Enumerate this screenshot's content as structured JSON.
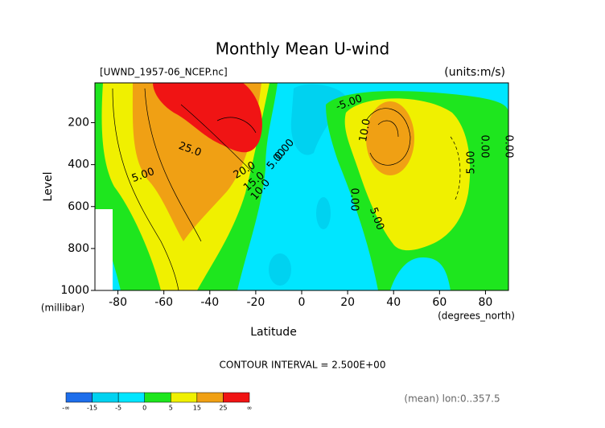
{
  "chart_data": {
    "type": "contour",
    "title": "Monthly Mean U-wind",
    "source_label": "[UWND_1957-06_NCEP.nc]",
    "units_label": "(units:m/s)",
    "xlabel": "Latitude",
    "xunit_label": "(degrees_north)",
    "ylabel": "Level",
    "yunit_label": "(millibar)",
    "xlim": [
      -90,
      90
    ],
    "xticks": [
      -80,
      -60,
      -40,
      -20,
      0,
      20,
      40,
      60,
      80
    ],
    "ylim": [
      1000,
      10
    ],
    "yticks": [
      200,
      400,
      600,
      800,
      1000
    ],
    "contour_interval_label": "CONTOUR INTERVAL = 2.500E+00",
    "footer_label": "(mean) lon:0..357.5",
    "contour_labels": [
      "5.00",
      "25.0",
      "20.0",
      "15.0",
      "10.0",
      "5.00",
      "0.00",
      "-5.00",
      "10.0",
      "0.00",
      "5.00",
      "5.00",
      "0.00",
      "0.00"
    ],
    "colorbar": {
      "low_label": "-∞",
      "levels": [
        -15,
        -5,
        0,
        5,
        15,
        25
      ],
      "high_label": "∞",
      "colors": [
        "#1e6eeb",
        "#3ca0f0",
        "#00d2f0",
        "#00e6ff",
        "#1ee61e",
        "#f0f000",
        "#f0a014",
        "#f01414"
      ]
    }
  }
}
